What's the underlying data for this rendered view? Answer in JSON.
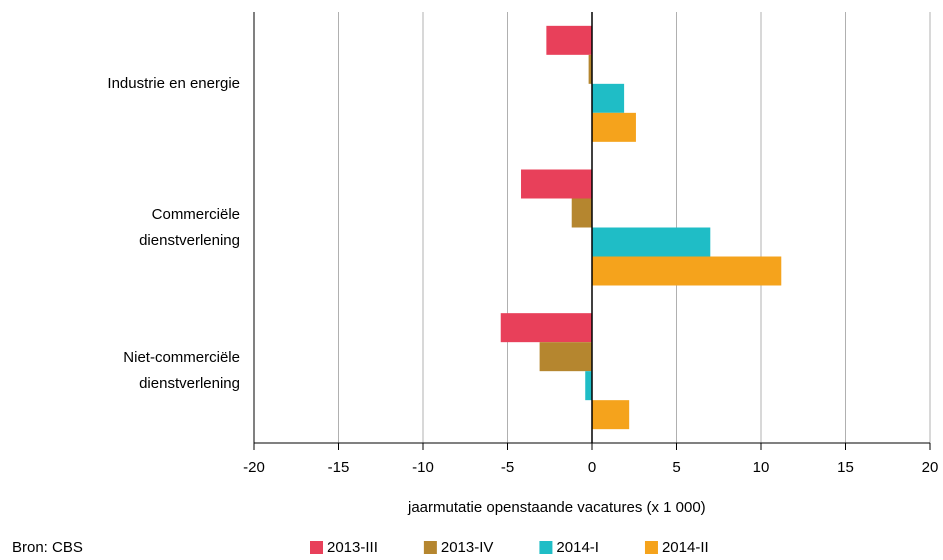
{
  "chart_data": {
    "type": "barh",
    "categories": [
      "Industrie en energie",
      "Commerciële\ndienstverlening",
      "Niet-commerciële\ndienstverlening"
    ],
    "series": [
      {
        "name": "2013-III",
        "color": "#e8405a",
        "values": [
          -2.7,
          -4.2,
          -5.4
        ]
      },
      {
        "name": "2013-IV",
        "color": "#b5862f",
        "values": [
          -0.2,
          -1.2,
          -3.1
        ]
      },
      {
        "name": "2014-I",
        "color": "#1fbdc6",
        "values": [
          1.9,
          7.0,
          -0.4
        ]
      },
      {
        "name": "2014-II",
        "color": "#f5a31c",
        "values": [
          2.6,
          11.2,
          2.2
        ]
      }
    ],
    "xlabel": "jaarmutatie openstaande vacatures (x 1 000)",
    "xlim": [
      -20,
      20
    ],
    "xticks": [
      -20,
      -15,
      -10,
      -5,
      0,
      5,
      10,
      15,
      20
    ],
    "grid": true,
    "legend": "bottom",
    "source": "Bron: CBS"
  }
}
